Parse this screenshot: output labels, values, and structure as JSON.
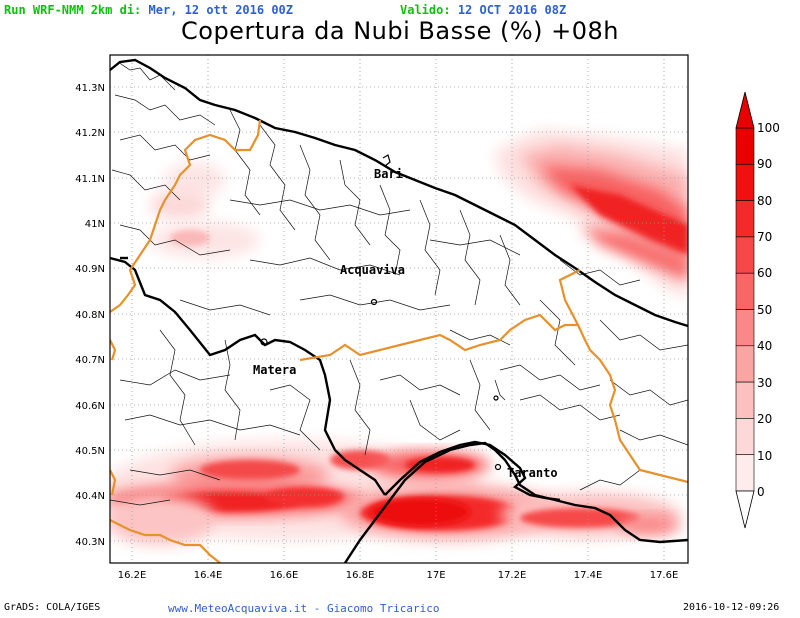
{
  "header": {
    "run_label": "Run WRF-NMM 2km di:",
    "run_date": "Mer, 12 ott 2016 00Z",
    "valid_label": "Valido:",
    "valid_date": "12 OCT 2016 08Z"
  },
  "title": "Copertura da Nubi Basse (%) +08h",
  "axes": {
    "lat_labels": [
      "41.3N",
      "41.2N",
      "41.1N",
      "41N",
      "40.9N",
      "40.8N",
      "40.7N",
      "40.6N",
      "40.5N",
      "40.4N",
      "40.3N"
    ],
    "lon_labels": [
      "16.2E",
      "16.4E",
      "16.6E",
      "16.8E",
      "17E",
      "17.2E",
      "17.4E",
      "17.6E"
    ]
  },
  "cities": {
    "bari": "Bari",
    "acquaviva": "Acquaviva",
    "matera": "Matera",
    "taranto": "Taranto"
  },
  "colorbar": {
    "labels": [
      "100",
      "90",
      "80",
      "70",
      "60",
      "50",
      "40",
      "30",
      "20",
      "10",
      "0"
    ],
    "colors": [
      "#e80000",
      "#f01010",
      "#f42a2a",
      "#f64848",
      "#f86666",
      "#fa8888",
      "#fba4a4",
      "#fcc0c0",
      "#fdd8d8",
      "#feecec"
    ]
  },
  "footer": {
    "left": "GrADS: COLA/IGES",
    "center": "www.MeteoAcquaviva.it - Giacomo Tricarico",
    "right": "2016-10-12-09:26"
  },
  "colors": {
    "coastline": "#000000",
    "region_border": "#e8902a",
    "province_border": "#000000"
  }
}
